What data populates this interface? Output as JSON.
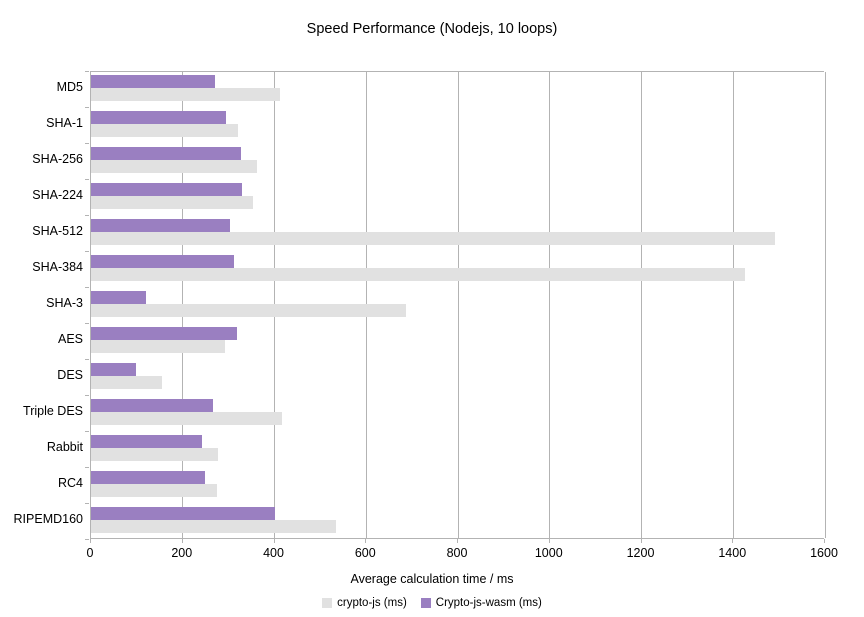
{
  "title": "Speed Performance (Nodejs, 10 loops)",
  "chart_data": {
    "type": "bar",
    "orientation": "horizontal",
    "title": "Speed Performance (Nodejs, 10 loops)",
    "xlabel": "Average calculation time / ms",
    "ylabel": "",
    "xlim": [
      0,
      1600
    ],
    "xticks": [
      0,
      200,
      400,
      600,
      800,
      1000,
      1200,
      1400,
      1600
    ],
    "grid": true,
    "legend_position": "bottom",
    "categories": [
      "MD5",
      "SHA-1",
      "SHA-256",
      "SHA-224",
      "SHA-512",
      "SHA-384",
      "SHA-3",
      "AES",
      "DES",
      "Triple DES",
      "Rabbit",
      "RC4",
      "RIPEMD160"
    ],
    "series": [
      {
        "name": "crypto-js (ms)",
        "color": "#e1e1e1",
        "values": [
          412,
          320,
          362,
          353,
          1492,
          1426,
          686,
          292,
          155,
          416,
          276,
          274,
          535
        ]
      },
      {
        "name": "Crypto-js-wasm (ms)",
        "color": "#9a7fc1",
        "values": [
          270,
          295,
          328,
          329,
          302,
          311,
          120,
          318,
          98,
          265,
          241,
          249,
          402
        ]
      }
    ]
  },
  "colors": {
    "axis": "#b3b3b3",
    "grid": "#b3b3b3",
    "background": "#ffffff",
    "text": "#000000"
  }
}
